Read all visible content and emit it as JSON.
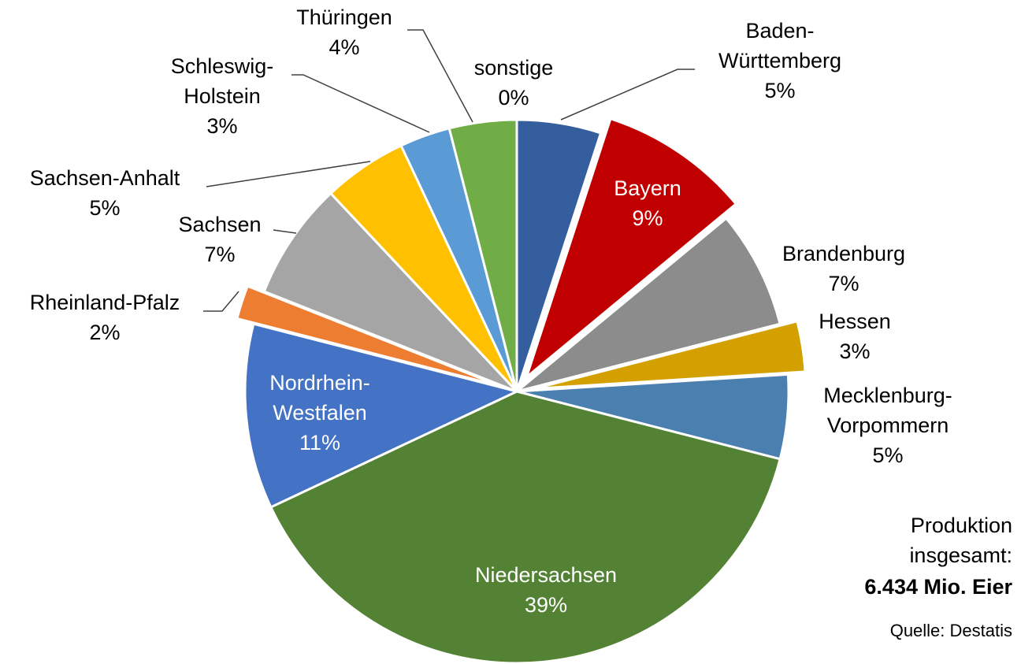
{
  "chart_data": {
    "type": "pie",
    "categories": [
      "Baden-\nWürttemberg",
      "Bayern",
      "Brandenburg",
      "Hessen",
      "Mecklenburg-\nVorpommern",
      "Niedersachsen",
      "Nordrhein-\nWestfalen",
      "Rheinland-Pfalz",
      "Sachsen",
      "Sachsen-Anhalt",
      "Schleswig-\nHolstein",
      "Thüringen",
      "sonstige"
    ],
    "values": [
      5,
      9,
      7,
      3,
      5,
      39,
      11,
      2,
      7,
      5,
      3,
      4,
      0
    ],
    "value_labels": [
      "5%",
      "9%",
      "7%",
      "3%",
      "5%",
      "39%",
      "11%",
      "2%",
      "7%",
      "5%",
      "3%",
      "4%",
      "0%"
    ],
    "colors": [
      "#355e9e",
      "#c00000",
      "#8c8c8c",
      "#d4a000",
      "#4a7fb0",
      "#548235",
      "#4472c4",
      "#ed7d31",
      "#a5a5a5",
      "#ffc000",
      "#5b9bd5",
      "#70ad47",
      "#9dadc8"
    ],
    "exploded": [
      1,
      3,
      7
    ],
    "total_label": "Produktion\ninsgesamt:",
    "total_value": "6.434 Mio. Eier",
    "source": "Quelle: Destatis"
  }
}
